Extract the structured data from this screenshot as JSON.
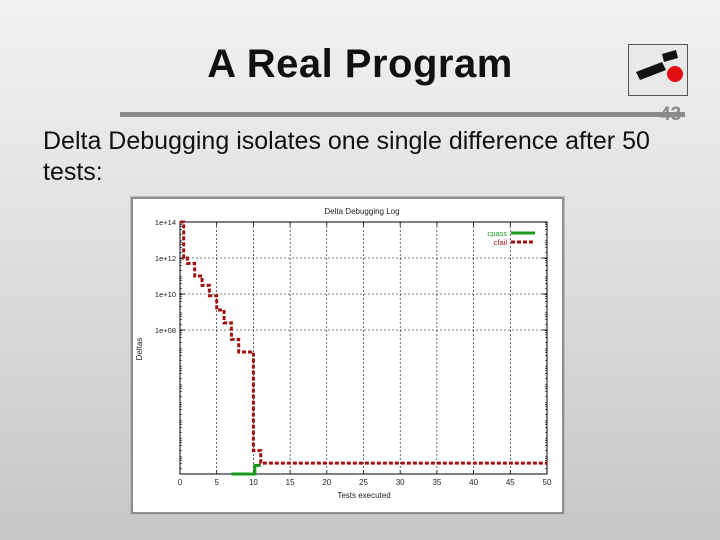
{
  "slide": {
    "title": "A Real Program",
    "number": "43",
    "body_text": "Delta Debugging isolates one single difference after 50 tests:"
  },
  "chart_data": {
    "type": "line",
    "title": "Delta Debugging Log",
    "xlabel": "Tests executed",
    "ylabel": "Deltas",
    "xlim": [
      0,
      50
    ],
    "ylim": [
      1,
      100000000000000
    ],
    "yscale": "log",
    "xticks": [
      "0",
      "5",
      "10",
      "15",
      "20",
      "25",
      "30",
      "35",
      "40",
      "45",
      "50"
    ],
    "yticks": [
      "1e+14",
      "1e+12",
      "1e+10",
      "1e+08"
    ],
    "grid": true,
    "legend_position": "top-right",
    "colors": {
      "cpass": "#1a9a1a",
      "cfail": "#a01010"
    },
    "series": [
      {
        "name": "cpass",
        "style": "solid",
        "points": [
          [
            7,
            1
          ],
          [
            10.2,
            1
          ],
          [
            10.2,
            3
          ],
          [
            11,
            3
          ]
        ]
      },
      {
        "name": "cfail",
        "style": "dashed",
        "points": [
          [
            0,
            100000000000000
          ],
          [
            0.5,
            100000000000000
          ],
          [
            0.5,
            1000000000000
          ],
          [
            1,
            1000000000000
          ],
          [
            1,
            500000000000
          ],
          [
            2,
            500000000000
          ],
          [
            2,
            100000000000
          ],
          [
            3,
            100000000000
          ],
          [
            3,
            30000000000
          ],
          [
            4,
            30000000000
          ],
          [
            4,
            8000000000
          ],
          [
            5,
            8000000000
          ],
          [
            5,
            1300000000
          ],
          [
            6,
            1300000000
          ],
          [
            6,
            250000000
          ],
          [
            7,
            250000000
          ],
          [
            7,
            30000000
          ],
          [
            8,
            30000000
          ],
          [
            8,
            6000000
          ],
          [
            10,
            6000000
          ],
          [
            10,
            20
          ],
          [
            11,
            20
          ],
          [
            11,
            4
          ],
          [
            50,
            4
          ]
        ]
      }
    ]
  }
}
